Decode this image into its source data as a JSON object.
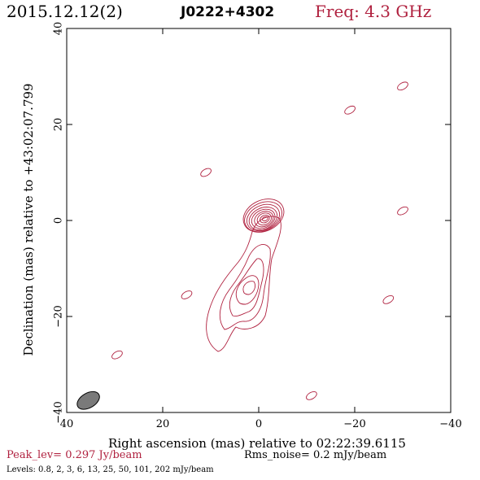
{
  "header": {
    "date": "2015.12.12(2)",
    "source": "J0222+4302",
    "frequency": "Freq: 4.3 GHz"
  },
  "footer": {
    "peak": "Peak_lev=  0.297 Jy/beam",
    "rms": "Rms_noise=  0.2 mJy/beam",
    "levels": "Levels: 0.8,   2,   3,   6,   13,   25,   50,  101,  202 mJy/beam"
  },
  "colors": {
    "contour": "#b0213f",
    "beam": "#7a7a7a",
    "title_accent": "#b0213f"
  },
  "chart_data": {
    "type": "contour",
    "xlabel": "Right ascension (mas) relative to 02:22:39.6115",
    "ylabel": "Declination (mas) relative to +43:02:07.799",
    "xlim": [
      40,
      -40
    ],
    "ylim": [
      -40,
      40
    ],
    "xticks": [
      40,
      20,
      0,
      -20,
      -40
    ],
    "yticks": [
      -40,
      -20,
      0,
      20,
      40
    ],
    "xtick_labels": [
      "40",
      "20",
      "0",
      "−20",
      "−40"
    ],
    "ytick_labels": [
      "−40",
      "−20",
      "0",
      "20",
      "40"
    ],
    "contour_levels_mJy": [
      0.8,
      2,
      3,
      6,
      13,
      25,
      50,
      101,
      202
    ],
    "core": {
      "x": 0,
      "y": 0
    },
    "components": [
      {
        "x": 0.5,
        "y": 0.5,
        "level": 202
      },
      {
        "x": -3,
        "y": 3,
        "level": 0.8
      }
    ],
    "beam": {
      "x": 35.5,
      "y": -37.5,
      "major_mas": 3.8,
      "minor_mas": 2.3,
      "pa_deg": 60
    },
    "knots": [
      {
        "x": 29.5,
        "y": -28,
        "level": 0.8
      },
      {
        "x": 15,
        "y": -15.5,
        "level": 0.8
      },
      {
        "x": 11,
        "y": 10,
        "level": 0.8
      },
      {
        "x": -19,
        "y": 23,
        "level": 0.8
      },
      {
        "x": -30,
        "y": 28,
        "level": 0.8
      },
      {
        "x": -30,
        "y": 2,
        "level": 0.8
      },
      {
        "x": -27,
        "y": -16.5,
        "level": 0.8
      },
      {
        "x": -11,
        "y": -36.5,
        "level": 0.8
      }
    ]
  }
}
